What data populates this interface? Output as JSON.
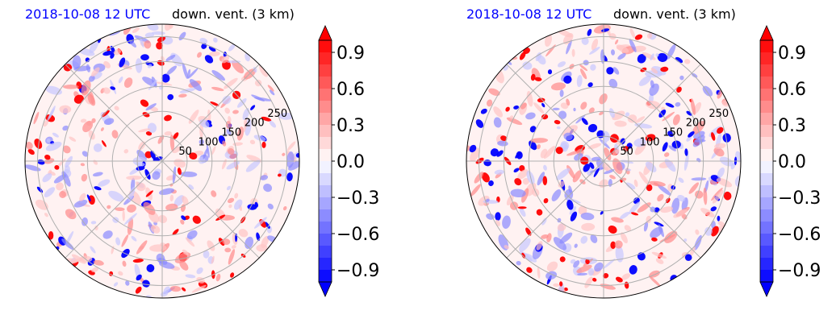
{
  "panels": [
    {
      "title_left": "2018-10-08 12 UTC",
      "title_right": "down. vent. (3 km)"
    },
    {
      "title_left": "2018-10-08 12 UTC",
      "title_right": "down. vent. (3 km)"
    }
  ],
  "colors": {
    "title_left": "#0000ff",
    "positive": "#ff0000",
    "negative": "#0000ff",
    "grid": "#b0b0b0"
  },
  "chart_data": [
    {
      "type": "heatmap",
      "projection": "polar",
      "radial_ticks": [
        "50",
        "100",
        "150",
        "200",
        "250"
      ],
      "radial_lim": [
        0,
        275
      ],
      "grid": true,
      "colorbar": {
        "ticks": [
          "0.9",
          "0.6",
          "0.3",
          "0.0",
          "−0.3",
          "−0.6",
          "−0.9"
        ],
        "vmin": -1.0,
        "vmax": 1.0,
        "levels": 20,
        "extend": "both"
      }
    },
    {
      "type": "heatmap",
      "projection": "polar",
      "radial_ticks": [
        "50",
        "100",
        "150",
        "200",
        "250"
      ],
      "radial_lim": [
        0,
        275
      ],
      "grid": true,
      "colorbar": {
        "ticks": [
          "0.9",
          "0.6",
          "0.3",
          "0.0",
          "−0.3",
          "−0.6",
          "−0.9"
        ],
        "vmin": -1.0,
        "vmax": 1.0,
        "levels": 20,
        "extend": "both"
      }
    }
  ]
}
